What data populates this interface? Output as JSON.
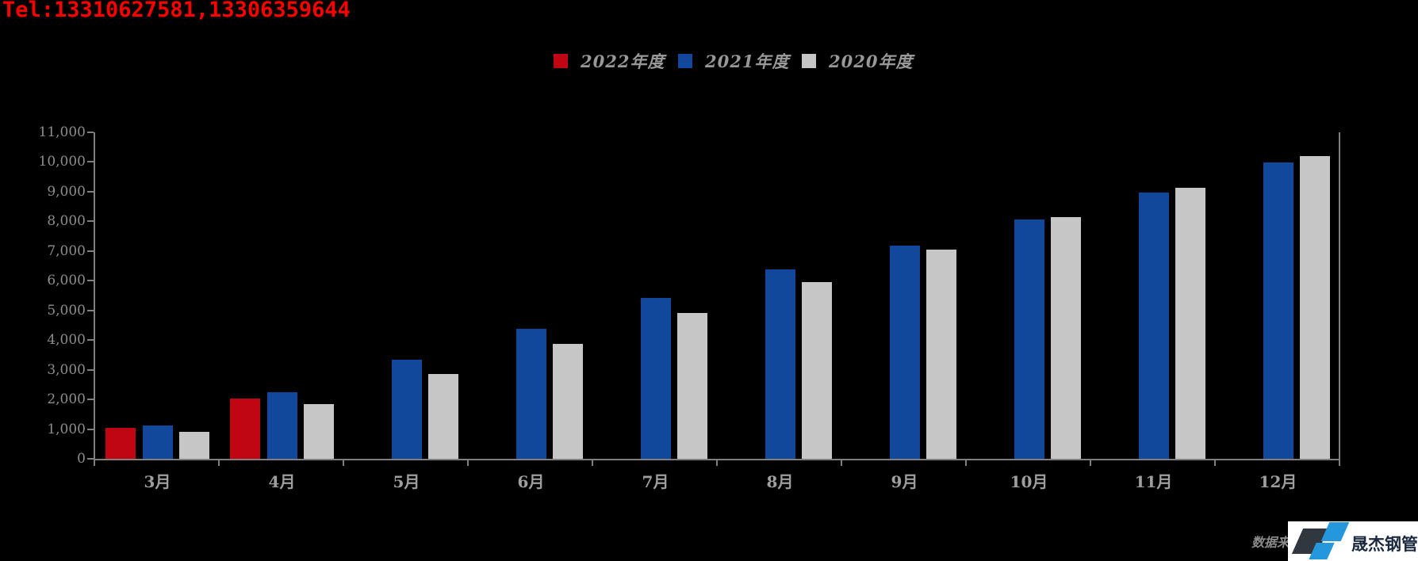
{
  "page": {
    "tel": "Tel:13310627581,13306359644"
  },
  "legend": [
    {
      "label": "2022年度",
      "color": "#c00612"
    },
    {
      "label": "2021年度",
      "color": "#11489b"
    },
    {
      "label": "2020年度",
      "color": "#c6c6c6"
    }
  ],
  "chart_data": {
    "type": "bar",
    "title": "",
    "xlabel": "",
    "ylabel": "",
    "categories": [
      "3月",
      "4月",
      "5月",
      "6月",
      "7月",
      "8月",
      "9月",
      "10月",
      "11月",
      "12月"
    ],
    "series": [
      {
        "name": "2022年度",
        "color": "#c00612",
        "values": [
          1050,
          2020,
          null,
          null,
          null,
          null,
          null,
          null,
          null,
          null
        ]
      },
      {
        "name": "2021年度",
        "color": "#11489b",
        "values": [
          1130,
          2250,
          3350,
          4380,
          5420,
          6370,
          7170,
          8070,
          8980,
          9990
        ]
      },
      {
        "name": "2020年度",
        "color": "#c6c6c6",
        "values": [
          900,
          1830,
          2860,
          3880,
          4900,
          5950,
          7060,
          8140,
          9140,
          10210
        ]
      }
    ],
    "ylim": [
      0,
      11000
    ],
    "ytick_step": 1000,
    "yticks": [
      "0",
      "1,000",
      "2,000",
      "3,000",
      "4,000",
      "5,000",
      "6,000",
      "7,000",
      "8,000",
      "9,000",
      "10,000",
      "11,000"
    ],
    "grid": false,
    "legend_position": "top",
    "axis_color": "#7f7f7f",
    "label_color": "#9e9e9e",
    "background": "#000000"
  },
  "footer": {
    "source_label": "数据来源:",
    "logo_text": "晟杰钢管"
  }
}
